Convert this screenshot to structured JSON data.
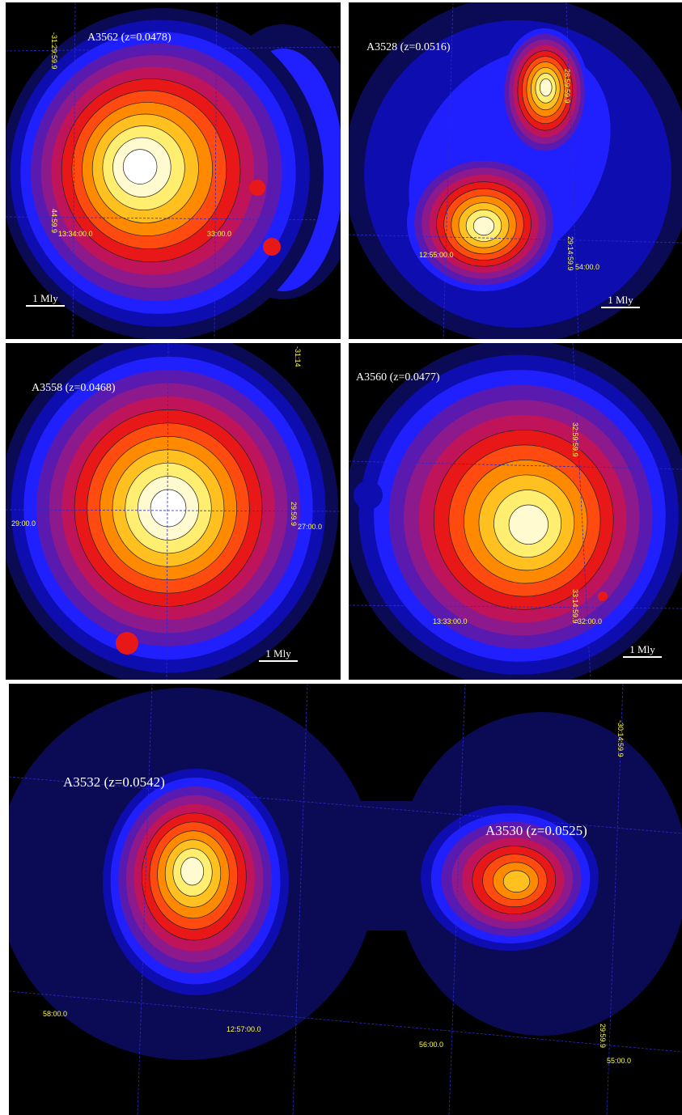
{
  "panels": [
    {
      "title": "A3562 (z=0.0478)",
      "coords": [
        "-31:29:59.9",
        "44:59.9",
        "13:34:00.0",
        "33:00.0"
      ],
      "scale": "1 Mly"
    },
    {
      "title": "A3528 (z=0.0516)",
      "coords": [
        "28:59:59.9",
        "12:55:00.0",
        "29:14:59.9",
        "54:00.0"
      ],
      "scale": "1 Mly"
    },
    {
      "title": "A3558 (z=0.0468)",
      "coords": [
        "-31:14",
        "29:00.0",
        "29:59.9",
        "27:00.0"
      ],
      "scale": "1 Mly"
    },
    {
      "title": "A3560 (z=0.0477)",
      "coords": [
        "32:59:59.9",
        "13:33:00.0",
        "33:14:59.9",
        "32:00.0"
      ],
      "scale": "1 Mly"
    },
    {
      "titles": [
        "A3532 (z=0.0542)",
        "A3530 (z=0.0525)"
      ],
      "coords": [
        "-30:14:59.9",
        "58:00.0",
        "12:57:00.0",
        "56:00.0",
        "29:59.9",
        "55:00.0"
      ]
    }
  ]
}
